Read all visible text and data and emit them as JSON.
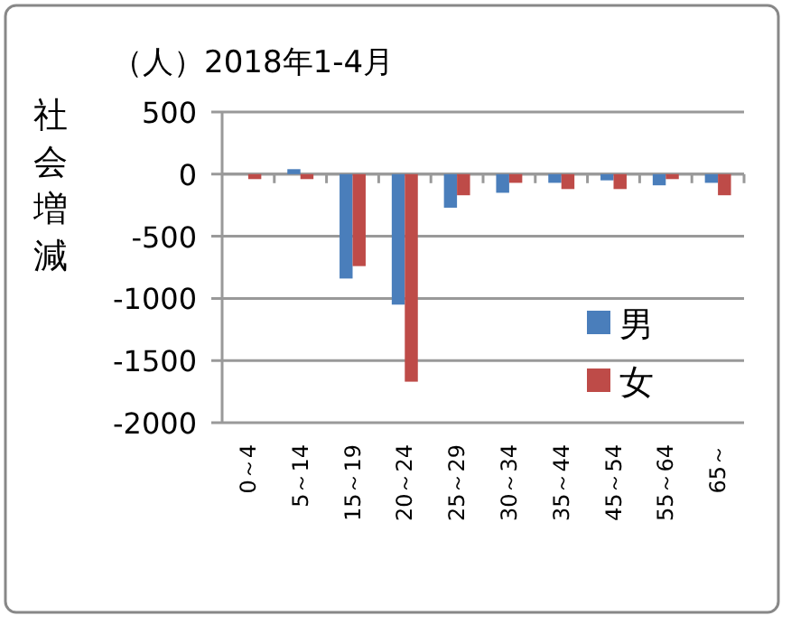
{
  "chart_data": {
    "type": "bar",
    "title": "（人）2018年1-4月",
    "ylabel": "社会増減",
    "categories": [
      "0～4",
      "5～14",
      "15～19",
      "20～24",
      "25～29",
      "30～34",
      "35～44",
      "45～54",
      "55～64",
      "65～"
    ],
    "series": [
      {
        "name": "男",
        "color": "#4a7ebb",
        "values": [
          0,
          40,
          -840,
          -1050,
          -270,
          -150,
          -70,
          -50,
          -90,
          -70
        ]
      },
      {
        "name": "女",
        "color": "#be4b48",
        "values": [
          -40,
          -40,
          -740,
          -1670,
          -170,
          -70,
          -120,
          -120,
          -40,
          -170
        ]
      }
    ],
    "ylim": [
      -2000,
      500
    ],
    "yticks": [
      -2000,
      -1500,
      -1000,
      -500,
      0,
      500
    ],
    "grid": "y",
    "legend": "bottom right"
  }
}
